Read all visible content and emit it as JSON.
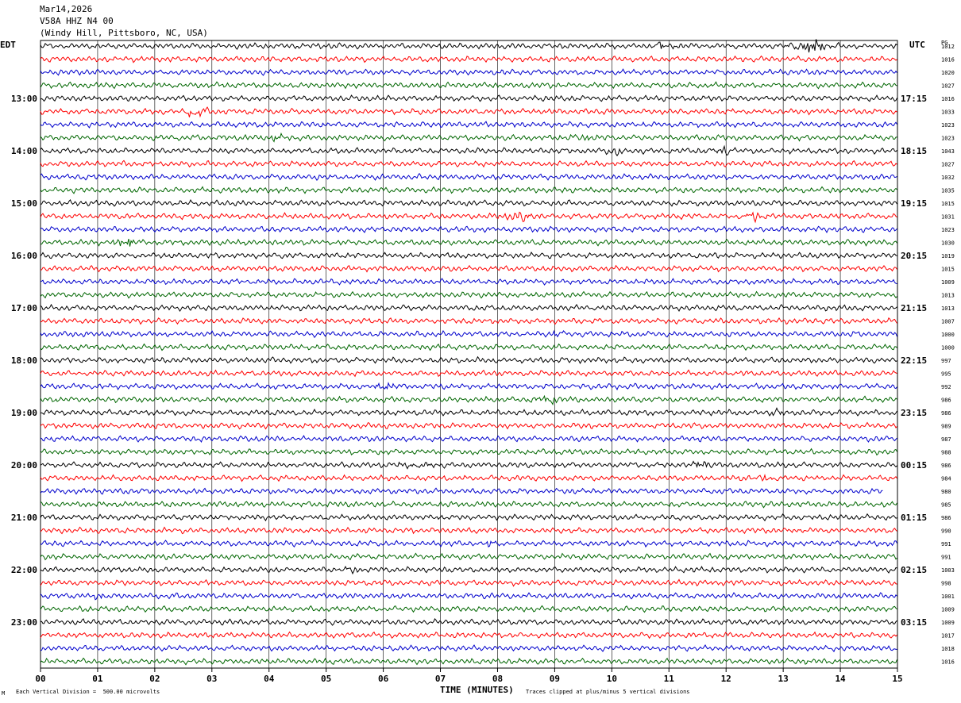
{
  "header": {
    "date": "Mar14,2026",
    "station": "V58A HHZ N4 00",
    "location": "(Windy Hill, Pittsboro, NC, USA)"
  },
  "left_zone": "EDT",
  "right_zone": "UTC",
  "pg_label": "PG",
  "footer": {
    "vertical_division": "Each Vertical Division =  500.00 microvolts",
    "clip_note": "Traces clipped at plus/minus 5 vertical divisions",
    "mark": "M"
  },
  "chart_data": {
    "type": "line",
    "title": "",
    "xlabel": "TIME (MINUTES)",
    "ylabel": "",
    "xlim": [
      0,
      15
    ],
    "x_ticks": [
      "00",
      "01",
      "02",
      "03",
      "04",
      "05",
      "06",
      "07",
      "08",
      "09",
      "10",
      "11",
      "12",
      "13",
      "14",
      "15"
    ],
    "row_count": 48,
    "row_colors": [
      "#000000",
      "#ff0000",
      "#0000cc",
      "#006600"
    ],
    "left_hour_labels": [
      "13:00",
      "14:00",
      "15:00",
      "16:00",
      "17:00",
      "18:00",
      "19:00",
      "20:00",
      "21:00",
      "22:00",
      "23:00"
    ],
    "right_hour_labels": [
      "17:15",
      "18:15",
      "19:15",
      "20:15",
      "21:15",
      "22:15",
      "23:15",
      "00:15",
      "01:15",
      "02:15",
      "03:15"
    ],
    "pg_values": [
      "1012",
      "1016",
      "1020",
      "1027",
      "1016",
      "1033",
      "1023",
      "1023",
      "1043",
      "1027",
      "1032",
      "1035",
      "1015",
      "1031",
      "1023",
      "1030",
      "1019",
      "1015",
      "1009",
      "1013",
      "1013",
      "1007",
      "1000",
      "1000",
      "997",
      "995",
      "992",
      "986",
      "986",
      "989",
      "987",
      "988",
      "986",
      "984",
      "980",
      "985",
      "986",
      "990",
      "991",
      "991",
      "1003",
      "998",
      "1001",
      "1009",
      "1009",
      "1017",
      "1018",
      "1016"
    ],
    "events": [
      {
        "row": 0,
        "minute": 13.5,
        "amplitude": 5
      },
      {
        "row": 0,
        "minute": 10.8,
        "amplitude": 2
      },
      {
        "row": 5,
        "minute": 2.7,
        "amplitude": 2.5
      },
      {
        "row": 7,
        "minute": 4.1,
        "amplitude": 1.5
      },
      {
        "row": 7,
        "minute": 9.5,
        "amplitude": 1.5
      },
      {
        "row": 8,
        "minute": 10.1,
        "amplitude": 1.5
      },
      {
        "row": 8,
        "minute": 12.0,
        "amplitude": 1.5
      },
      {
        "row": 13,
        "minute": 8.4,
        "amplitude": 2.5
      },
      {
        "row": 13,
        "minute": 12.5,
        "amplitude": 2.5
      },
      {
        "row": 15,
        "minute": 1.5,
        "amplitude": 2.5
      },
      {
        "row": 22,
        "minute": 9.1,
        "amplitude": 1.5
      },
      {
        "row": 26,
        "minute": 6.0,
        "amplitude": 1.5
      },
      {
        "row": 27,
        "minute": 8.9,
        "amplitude": 2
      },
      {
        "row": 28,
        "minute": 12.9,
        "amplitude": 1.5
      },
      {
        "row": 32,
        "minute": 6.6,
        "amplitude": 1.2
      },
      {
        "row": 32,
        "minute": 11.6,
        "amplitude": 2
      },
      {
        "row": 33,
        "minute": 12.7,
        "amplitude": 1.5
      },
      {
        "row": 35,
        "minute": 2.0,
        "amplitude": 1.5
      },
      {
        "row": 37,
        "minute": 13.2,
        "amplitude": 1.2
      },
      {
        "row": 38,
        "minute": 7.9,
        "amplitude": 1.5
      },
      {
        "row": 40,
        "minute": 5.5,
        "amplitude": 1.5
      },
      {
        "row": 42,
        "minute": 1.0,
        "amplitude": 1.2
      }
    ]
  }
}
